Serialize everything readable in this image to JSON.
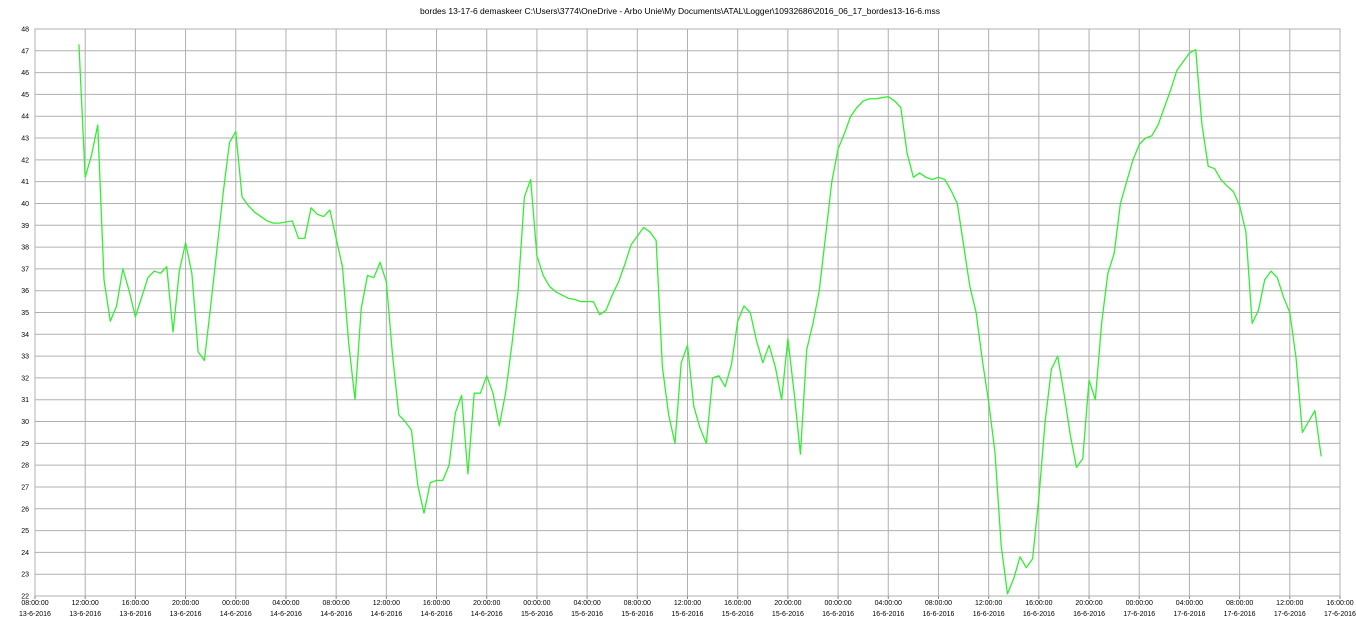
{
  "chart_data": {
    "type": "line",
    "title": "bordes 13-17-6 demaskeer    C:\\Users\\3774\\OneDrive - Arbo Unie\\My Documents\\ATAL\\Logger\\10932686\\2016_06_17_bordes13-16-6.mss",
    "color": "#33ee33",
    "grid": true,
    "ylim": [
      22,
      48
    ],
    "yticks": [
      22,
      23,
      24,
      25,
      26,
      27,
      28,
      29,
      30,
      31,
      32,
      33,
      34,
      35,
      36,
      37,
      38,
      39,
      40,
      41,
      42,
      43,
      44,
      45,
      46,
      47,
      48
    ],
    "xlim": [
      "13-6-2016 08:00",
      "17-6-2016 16:00"
    ],
    "xticks": [
      {
        "value": "13-6-2016 08:00",
        "label": [
          "08:00:00",
          "13-6-2016"
        ]
      },
      {
        "value": "13-6-2016 12:00",
        "label": [
          "12:00:00",
          "13-6-2016"
        ]
      },
      {
        "value": "13-6-2016 16:00",
        "label": [
          "16:00:00",
          "13-6-2016"
        ]
      },
      {
        "value": "13-6-2016 20:00",
        "label": [
          "20:00:00",
          "13-6-2016"
        ]
      },
      {
        "value": "14-6-2016 00:00",
        "label": [
          "00:00:00",
          "14-6-2016"
        ]
      },
      {
        "value": "14-6-2016 04:00",
        "label": [
          "04:00:00",
          "14-6-2016"
        ]
      },
      {
        "value": "14-6-2016 08:00",
        "label": [
          "08:00:00",
          "14-6-2016"
        ]
      },
      {
        "value": "14-6-2016 12:00",
        "label": [
          "12:00:00",
          "14-6-2016"
        ]
      },
      {
        "value": "14-6-2016 16:00",
        "label": [
          "16:00:00",
          "14-6-2016"
        ]
      },
      {
        "value": "14-6-2016 20:00",
        "label": [
          "20:00:00",
          "14-6-2016"
        ]
      },
      {
        "value": "15-6-2016 00:00",
        "label": [
          "00:00:00",
          "15-6-2016"
        ]
      },
      {
        "value": "15-6-2016 04:00",
        "label": [
          "04:00:00",
          "15-6-2016"
        ]
      },
      {
        "value": "15-6-2016 08:00",
        "label": [
          "08:00:00",
          "15-6-2016"
        ]
      },
      {
        "value": "15-6-2016 12:00",
        "label": [
          "12:00:00",
          "15-6-2016"
        ]
      },
      {
        "value": "15-6-2016 16:00",
        "label": [
          "16:00:00",
          "15-6-2016"
        ]
      },
      {
        "value": "15-6-2016 20:00",
        "label": [
          "20:00:00",
          "15-6-2016"
        ]
      },
      {
        "value": "16-6-2016 00:00",
        "label": [
          "00:00:00",
          "16-6-2016"
        ]
      },
      {
        "value": "16-6-2016 04:00",
        "label": [
          "04:00:00",
          "16-6-2016"
        ]
      },
      {
        "value": "16-6-2016 08:00",
        "label": [
          "08:00:00",
          "16-6-2016"
        ]
      },
      {
        "value": "16-6-2016 12:00",
        "label": [
          "12:00:00",
          "16-6-2016"
        ]
      },
      {
        "value": "16-6-2016 16:00",
        "label": [
          "16:00:00",
          "16-6-2016"
        ]
      },
      {
        "value": "16-6-2016 20:00",
        "label": [
          "20:00:00",
          "16-6-2016"
        ]
      },
      {
        "value": "17-6-2016 00:00",
        "label": [
          "00:00:00",
          "17-6-2016"
        ]
      },
      {
        "value": "17-6-2016 04:00",
        "label": [
          "04:00:00",
          "17-6-2016"
        ]
      },
      {
        "value": "17-6-2016 08:00",
        "label": [
          "08:00:00",
          "17-6-2016"
        ]
      },
      {
        "value": "17-6-2016 12:00",
        "label": [
          "12:00:00",
          "17-6-2016"
        ]
      },
      {
        "value": "17-6-2016 16:00",
        "label": [
          "16:00:00",
          "17-6-2016"
        ]
      }
    ],
    "x": [
      "13-6-2016 11:30",
      "13-6-2016 12:00",
      "13-6-2016 12:30",
      "13-6-2016 13:00",
      "13-6-2016 13:30",
      "13-6-2016 14:00",
      "13-6-2016 14:30",
      "13-6-2016 15:00",
      "13-6-2016 15:30",
      "13-6-2016 16:00",
      "13-6-2016 16:30",
      "13-6-2016 17:00",
      "13-6-2016 17:30",
      "13-6-2016 18:00",
      "13-6-2016 18:30",
      "13-6-2016 19:00",
      "13-6-2016 19:30",
      "13-6-2016 20:00",
      "13-6-2016 20:30",
      "13-6-2016 21:00",
      "13-6-2016 21:30",
      "13-6-2016 22:00",
      "13-6-2016 22:30",
      "13-6-2016 23:00",
      "13-6-2016 23:30",
      "14-6-2016 00:00",
      "14-6-2016 00:30",
      "14-6-2016 01:00",
      "14-6-2016 01:30",
      "14-6-2016 02:00",
      "14-6-2016 02:30",
      "14-6-2016 03:00",
      "14-6-2016 03:30",
      "14-6-2016 04:00",
      "14-6-2016 04:30",
      "14-6-2016 05:00",
      "14-6-2016 05:30",
      "14-6-2016 06:00",
      "14-6-2016 06:30",
      "14-6-2016 07:00",
      "14-6-2016 07:30",
      "14-6-2016 08:00",
      "14-6-2016 08:30",
      "14-6-2016 09:00",
      "14-6-2016 09:30",
      "14-6-2016 10:00",
      "14-6-2016 10:30",
      "14-6-2016 11:00",
      "14-6-2016 11:30",
      "14-6-2016 12:00",
      "14-6-2016 12:30",
      "14-6-2016 13:00",
      "14-6-2016 13:30",
      "14-6-2016 14:00",
      "14-6-2016 14:30",
      "14-6-2016 15:00",
      "14-6-2016 15:30",
      "14-6-2016 16:00",
      "14-6-2016 16:30",
      "14-6-2016 17:00",
      "14-6-2016 17:30",
      "14-6-2016 18:00",
      "14-6-2016 18:30",
      "14-6-2016 19:00",
      "14-6-2016 19:30",
      "14-6-2016 20:00",
      "14-6-2016 20:30",
      "14-6-2016 21:00",
      "14-6-2016 21:30",
      "14-6-2016 22:00",
      "14-6-2016 22:30",
      "14-6-2016 23:00",
      "14-6-2016 23:30",
      "15-6-2016 00:00",
      "15-6-2016 00:30",
      "15-6-2016 01:00",
      "15-6-2016 01:30",
      "15-6-2016 02:00",
      "15-6-2016 02:30",
      "15-6-2016 03:00",
      "15-6-2016 03:30",
      "15-6-2016 04:00",
      "15-6-2016 04:30",
      "15-6-2016 05:00",
      "15-6-2016 05:30",
      "15-6-2016 06:00",
      "15-6-2016 06:30",
      "15-6-2016 07:00",
      "15-6-2016 07:30",
      "15-6-2016 08:00",
      "15-6-2016 08:30",
      "15-6-2016 09:00",
      "15-6-2016 09:30",
      "15-6-2016 10:00",
      "15-6-2016 10:30",
      "15-6-2016 11:00",
      "15-6-2016 11:30",
      "15-6-2016 12:00",
      "15-6-2016 12:30",
      "15-6-2016 13:00",
      "15-6-2016 13:30",
      "15-6-2016 14:00",
      "15-6-2016 14:30",
      "15-6-2016 15:00",
      "15-6-2016 15:30",
      "15-6-2016 16:00",
      "15-6-2016 16:30",
      "15-6-2016 17:00",
      "15-6-2016 17:30",
      "15-6-2016 18:00",
      "15-6-2016 18:30",
      "15-6-2016 19:00",
      "15-6-2016 19:30",
      "15-6-2016 20:00",
      "15-6-2016 20:30",
      "15-6-2016 21:00",
      "15-6-2016 21:30",
      "15-6-2016 22:00",
      "15-6-2016 22:30",
      "15-6-2016 23:00",
      "15-6-2016 23:30",
      "16-6-2016 00:00",
      "16-6-2016 00:30",
      "16-6-2016 01:00",
      "16-6-2016 01:30",
      "16-6-2016 02:00",
      "16-6-2016 02:30",
      "16-6-2016 03:00",
      "16-6-2016 03:30",
      "16-6-2016 04:00",
      "16-6-2016 04:30",
      "16-6-2016 05:00",
      "16-6-2016 05:30",
      "16-6-2016 06:00",
      "16-6-2016 06:30",
      "16-6-2016 07:00",
      "16-6-2016 07:30",
      "16-6-2016 08:00",
      "16-6-2016 08:30",
      "16-6-2016 09:00",
      "16-6-2016 09:30",
      "16-6-2016 10:00",
      "16-6-2016 10:30",
      "16-6-2016 11:00",
      "16-6-2016 11:30",
      "16-6-2016 12:00",
      "16-6-2016 12:30",
      "16-6-2016 13:00",
      "16-6-2016 13:30",
      "16-6-2016 14:00",
      "16-6-2016 14:30",
      "16-6-2016 15:00",
      "16-6-2016 15:30",
      "16-6-2016 16:00",
      "16-6-2016 16:30",
      "16-6-2016 17:00",
      "16-6-2016 17:30",
      "16-6-2016 18:00",
      "16-6-2016 18:30",
      "16-6-2016 19:00",
      "16-6-2016 19:30",
      "16-6-2016 20:00",
      "16-6-2016 20:30",
      "16-6-2016 21:00",
      "16-6-2016 21:30",
      "16-6-2016 22:00",
      "16-6-2016 22:30",
      "16-6-2016 23:00",
      "16-6-2016 23:30",
      "17-6-2016 00:00",
      "17-6-2016 00:30",
      "17-6-2016 01:00",
      "17-6-2016 01:30",
      "17-6-2016 02:00",
      "17-6-2016 02:30",
      "17-6-2016 03:00",
      "17-6-2016 03:30",
      "17-6-2016 04:00",
      "17-6-2016 04:30",
      "17-6-2016 05:00",
      "17-6-2016 05:30",
      "17-6-2016 06:00",
      "17-6-2016 06:30",
      "17-6-2016 07:00",
      "17-6-2016 07:30",
      "17-6-2016 08:00",
      "17-6-2016 08:30",
      "17-6-2016 09:00",
      "17-6-2016 09:30",
      "17-6-2016 10:00",
      "17-6-2016 10:30",
      "17-6-2016 11:00",
      "17-6-2016 11:30",
      "17-6-2016 12:00",
      "17-6-2016 12:30",
      "17-6-2016 13:00",
      "17-6-2016 13:30",
      "17-6-2016 14:00",
      "17-6-2016 14:30"
    ],
    "values": [
      47.3,
      41.2,
      42.2,
      43.6,
      36.5,
      34.6,
      35.3,
      37,
      36,
      34.8,
      35.7,
      36.6,
      36.9,
      36.8,
      37.1,
      34.1,
      36.9,
      38.2,
      36.8,
      33.2,
      32.8,
      35.3,
      37.9,
      40.5,
      42.8,
      43.3,
      40.3,
      39.9,
      39.6,
      39.4,
      39.2,
      39.1,
      39.1,
      39.15,
      39.2,
      38.4,
      38.4,
      39.8,
      39.5,
      39.4,
      39.7,
      38.4,
      37.1,
      33.6,
      31,
      35.2,
      36.7,
      36.6,
      37.3,
      36.4,
      33,
      30.3,
      30,
      29.6,
      27.1,
      25.8,
      27.2,
      27.3,
      27.3,
      28,
      30.4,
      31.2,
      27.6,
      31.3,
      31.3,
      32.1,
      31.3,
      29.8,
      31.3,
      33.5,
      36,
      40.3,
      41.1,
      37.6,
      36.7,
      36.2,
      35.95,
      35.8,
      35.65,
      35.6,
      35.5,
      35.5,
      35.5,
      34.9,
      35.1,
      35.8,
      36.4,
      37.2,
      38.1,
      38.5,
      38.9,
      38.7,
      38.3,
      32.5,
      30.3,
      29,
      32.7,
      33.5,
      30.7,
      29.7,
      29,
      32,
      32.1,
      31.6,
      32.6,
      34.6,
      35.3,
      35,
      33.7,
      32.7,
      33.5,
      32.5,
      31,
      33.8,
      31.3,
      28.5,
      33.3,
      34.5,
      36,
      38.5,
      41,
      42.5,
      43.2,
      44,
      44.4,
      44.7,
      44.8,
      44.8,
      44.85,
      44.9,
      44.7,
      44.4,
      42.3,
      41.2,
      41.4,
      41.2,
      41.1,
      41.2,
      41.1,
      40.6,
      40,
      38.1,
      36.2,
      35,
      32.8,
      30.9,
      28.6,
      24.3,
      22.1,
      22.8,
      23.8,
      23.3,
      23.7,
      26.5,
      30,
      32.4,
      33,
      31.3,
      29.4,
      27.9,
      28.3,
      31.9,
      31,
      34.5,
      36.8,
      37.7,
      40,
      41,
      42,
      42.7,
      43,
      43.1,
      43.6,
      44.4,
      45.2,
      46.1,
      46.5,
      46.9,
      47.05,
      43.6,
      41.7,
      41.6,
      41.1,
      40.8,
      40.55,
      39.9,
      38.7,
      34.5,
      35.1,
      36.5,
      36.9,
      36.6,
      35.7,
      35,
      32.9,
      29.5,
      30,
      30.5,
      28.4
    ]
  }
}
